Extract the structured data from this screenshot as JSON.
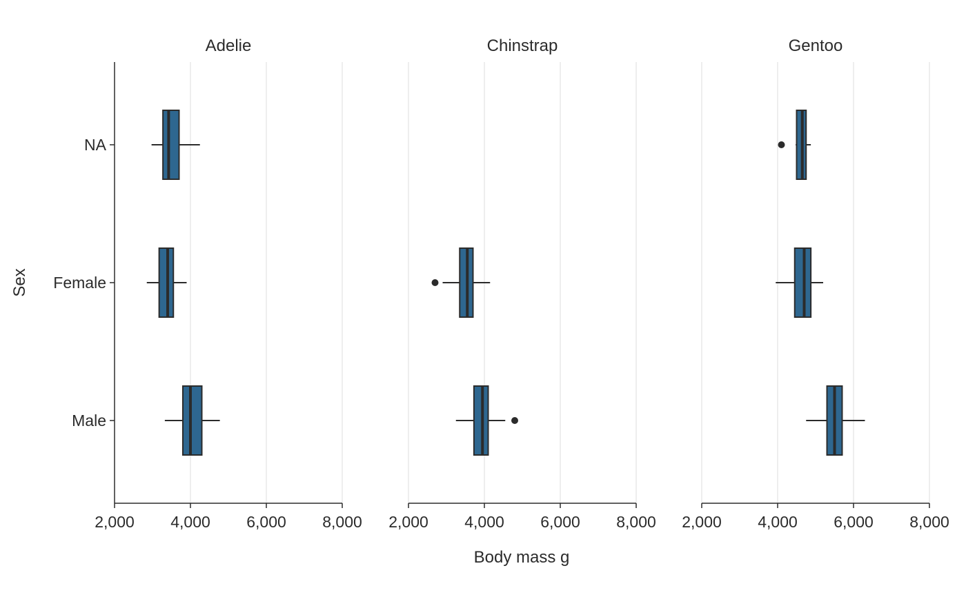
{
  "chart_data": {
    "type": "boxplot",
    "orientation": "horizontal",
    "xlabel": "Body mass g",
    "ylabel": "Sex",
    "xlim": [
      2000,
      8000
    ],
    "x_ticks": [
      2000,
      4000,
      6000,
      8000
    ],
    "x_tick_labels": [
      "2,000",
      "4,000",
      "6,000",
      "8,000"
    ],
    "categories": [
      "NA",
      "Female",
      "Male"
    ],
    "grid": "vertical major lines",
    "box_color": "#2e6790",
    "line_color": "#2b2b2b",
    "facets": [
      {
        "title": "Adelie",
        "boxes": [
          {
            "category": "NA",
            "whisker_low": 2975,
            "q1": 3275,
            "median": 3425,
            "q3": 3700,
            "whisker_high": 4250,
            "outliers": []
          },
          {
            "category": "Female",
            "whisker_low": 2850,
            "q1": 3175,
            "median": 3400,
            "q3": 3550,
            "whisker_high": 3900,
            "outliers": []
          },
          {
            "category": "Male",
            "whisker_low": 3325,
            "q1": 3800,
            "median": 4000,
            "q3": 4300,
            "whisker_high": 4775,
            "outliers": []
          }
        ]
      },
      {
        "title": "Chinstrap",
        "boxes": [
          {
            "category": "Female",
            "whisker_low": 2900,
            "q1": 3350,
            "median": 3550,
            "q3": 3700,
            "whisker_high": 4150,
            "outliers": [
              2700
            ]
          },
          {
            "category": "Male",
            "whisker_low": 3250,
            "q1": 3725,
            "median": 3950,
            "q3": 4100,
            "whisker_high": 4550,
            "outliers": [
              4800
            ]
          }
        ]
      },
      {
        "title": "Gentoo",
        "boxes": [
          {
            "category": "NA",
            "whisker_low": 4475,
            "q1": 4500,
            "median": 4650,
            "q3": 4750,
            "whisker_high": 4875,
            "outliers": [
              4100
            ]
          },
          {
            "category": "Female",
            "whisker_low": 3950,
            "q1": 4450,
            "median": 4700,
            "q3": 4875,
            "whisker_high": 5200,
            "outliers": []
          },
          {
            "category": "Male",
            "whisker_low": 4750,
            "q1": 5300,
            "median": 5500,
            "q3": 5700,
            "whisker_high": 6300,
            "outliers": []
          }
        ]
      }
    ]
  }
}
